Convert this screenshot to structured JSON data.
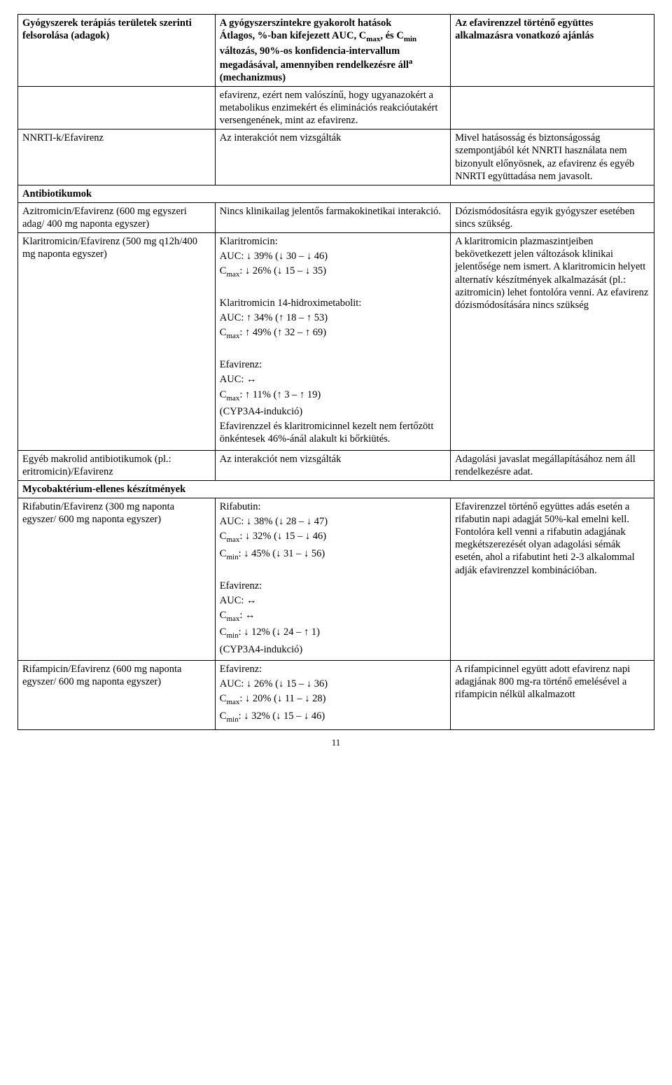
{
  "header": {
    "col1": "Gyógyszerek terápiás területek szerinti felsorolása (adagok)",
    "col2_line1": "A gyógyszerszintekre gyakorolt hatások",
    "col2_line2_pre": "Átlagos, %-ban kifejezett AUC, C",
    "col2_line2_sub1": "max",
    "col2_line2_mid": ", és C",
    "col2_line2_sub2": "min",
    "col2_line2_post": " változás, 90%-os konfidencia-intervallum megadásával, amennyiben rendelkezésre áll",
    "col2_line2_sup": "a",
    "col2_line3": " (mechanizmus)",
    "col3": "Az efavirenzzel történő együttes alkalmazásra vonatkozó ajánlás"
  },
  "row_efavirenz_carry": {
    "col2": "efavirenz, ezért nem valószínű, hogy ugyanazokért a metabolikus enzimekért és eliminációs reakcióutakért versengenének, mint az efavirenz."
  },
  "row_nnrti": {
    "col1": "NNRTI-k/Efavirenz",
    "col2": "Az interakciót nem vizsgálták",
    "col3": "Mivel hatásosság és biztonságosság szempontjából két NNRTI használata nem bizonyult előnyösnek, az efavirenz és egyéb NNRTI együttadása nem javasolt."
  },
  "section_antibiotics": "Antibiotikumok",
  "row_azitro": {
    "col1": "Azitromicin/Efavirenz (600 mg egyszeri adag/ 400 mg naponta egyszer)",
    "col2": "Nincs klinikailag jelentős farmakokinetikai interakció.",
    "col3": "Dózismódosításra egyik gyógyszer esetében sincs szükség."
  },
  "row_klaritro": {
    "col1": "Klaritromicin/Efavirenz (500 mg q12h/400 mg naponta egyszer)",
    "c2_a": "Klaritromicin:",
    "c2_b": "AUC: ↓ 39% (↓ 30 – ↓ 46)",
    "c2_c_pre": "C",
    "c2_c_sub": "max",
    "c2_c_post": ": ↓ 26% (↓ 15 – ↓ 35)",
    "c2_d": "Klaritromicin 14-hidroximetabolit:",
    "c2_e": "AUC: ↑ 34% (↑ 18 – ↑ 53)",
    "c2_f_pre": "C",
    "c2_f_sub": "max",
    "c2_f_post": ": ↑ 49% (↑ 32 – ↑ 69)",
    "c2_g": "Efavirenz:",
    "c2_h": "AUC: ↔",
    "c2_i_pre": "C",
    "c2_i_sub": "max",
    "c2_i_post": ": ↑ 11% (↑ 3 – ↑ 19)",
    "c2_j": "(CYP3A4-indukció)",
    "c2_k": "Efavirenzzel és klaritromicinnel kezelt nem fertőzött önkéntesek 46%-ánál alakult ki bőrkiütés.",
    "col3": "A klaritromicin plazmaszintjeiben bekövetkezett jelen változások klinikai jelentősége nem ismert. A klaritromicin helyett alternatív készítmények alkalmazását (pl.: azitromicin) lehet fontolóra venni. Az efavirenz dózismódosítására nincs szükség"
  },
  "row_makrolid": {
    "col1": "Egyéb makrolid antibiotikumok (pl.: eritromicin)/Efavirenz",
    "col2": "Az interakciót nem vizsgálták",
    "col3": "Adagolási javaslat megállapításához nem áll rendelkezésre adat."
  },
  "section_myco": "Mycobaktérium-ellenes készítmények",
  "row_rifabutin": {
    "col1": "Rifabutin/Efavirenz (300 mg naponta egyszer/ 600 mg naponta egyszer)",
    "c2_a": "Rifabutin:",
    "c2_b": "AUC: ↓ 38% (↓ 28 – ↓ 47)",
    "c2_c_pre": "C",
    "c2_c_sub": "max",
    "c2_c_post": ": ↓ 32% (↓ 15 – ↓ 46)",
    "c2_d_pre": "C",
    "c2_d_sub": "min",
    "c2_d_post": ": ↓ 45% (↓ 31 – ↓ 56)",
    "c2_e": "Efavirenz:",
    "c2_f": "AUC: ↔",
    "c2_g_pre": "C",
    "c2_g_sub": "max",
    "c2_g_post": ": ↔",
    "c2_h_pre": "C",
    "c2_h_sub": "min",
    "c2_h_post": ": ↓ 12% (↓ 24 – ↑ 1)",
    "c2_i": "(CYP3A4-indukció)",
    "col3": "Efavirenzzel történő együttes adás esetén a rifabutin napi adagját 50%-kal emelni kell. Fontolóra kell venni a rifabutin adagjának megkétszerezését olyan adagolási sémák esetén, ahol a rifabutint heti 2-3 alkalommal adják efavirenzzel kombinációban."
  },
  "row_rifampicin": {
    "col1": "Rifampicin/Efavirenz (600 mg naponta egyszer/ 600 mg naponta egyszer)",
    "c2_a": "Efavirenz:",
    "c2_b": "AUC: ↓ 26% (↓ 15 – ↓ 36)",
    "c2_c_pre": "C",
    "c2_c_sub": "max",
    "c2_c_post": ": ↓ 20% (↓ 11 – ↓ 28)",
    "c2_d_pre": "C",
    "c2_d_sub": "min",
    "c2_d_post": ": ↓ 32% (↓ 15 – ↓ 46)",
    "col3": "A rifampicinnel együtt adott efavirenz napi adagjának 800 mg-ra történő emelésével a rifampicin nélkül alkalmazott"
  },
  "pagenum": "11"
}
